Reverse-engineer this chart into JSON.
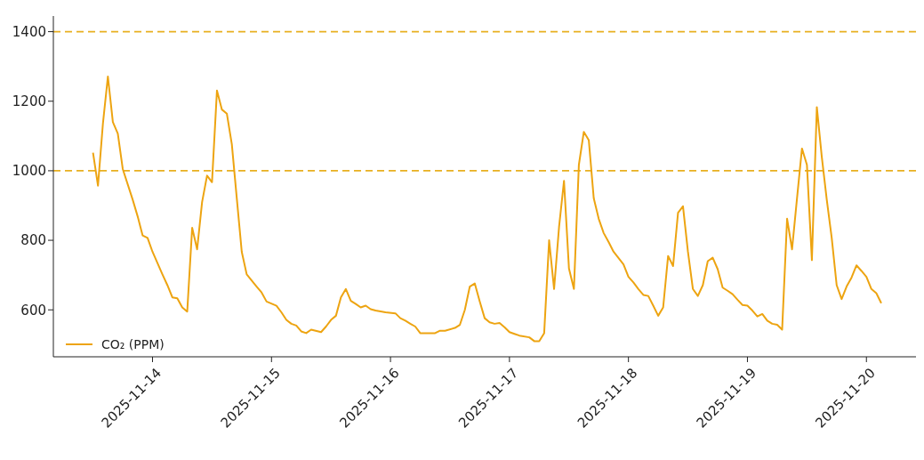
{
  "chart_data": {
    "type": "line",
    "x": [
      "2025-11-13T12:00",
      "2025-11-13T13:00",
      "2025-11-13T14:00",
      "2025-11-13T15:00",
      "2025-11-13T16:00",
      "2025-11-13T17:00",
      "2025-11-13T18:00",
      "2025-11-13T20:00",
      "2025-11-13T21:00",
      "2025-11-13T22:00",
      "2025-11-13T23:00",
      "2025-11-14T00:00",
      "2025-11-14T02:00",
      "2025-11-14T03:00",
      "2025-11-14T04:00",
      "2025-11-14T05:00",
      "2025-11-14T06:00",
      "2025-11-14T07:00",
      "2025-11-14T08:00",
      "2025-11-14T09:00",
      "2025-11-14T10:00",
      "2025-11-14T11:00",
      "2025-11-14T12:00",
      "2025-11-14T13:00",
      "2025-11-14T14:00",
      "2025-11-14T15:00",
      "2025-11-14T16:00",
      "2025-11-14T17:00",
      "2025-11-14T18:00",
      "2025-11-14T19:00",
      "2025-11-14T21:00",
      "2025-11-14T22:00",
      "2025-11-14T23:00",
      "2025-11-15T01:00",
      "2025-11-15T02:00",
      "2025-11-15T03:00",
      "2025-11-15T04:00",
      "2025-11-15T05:00",
      "2025-11-15T06:00",
      "2025-11-15T07:00",
      "2025-11-15T08:00",
      "2025-11-15T10:00",
      "2025-11-15T11:00",
      "2025-11-15T12:00",
      "2025-11-15T13:00",
      "2025-11-15T14:00",
      "2025-11-15T15:00",
      "2025-11-15T16:00",
      "2025-11-15T17:00",
      "2025-11-15T18:00",
      "2025-11-15T19:00",
      "2025-11-15T20:00",
      "2025-11-15T21:00",
      "2025-11-15T23:00",
      "2025-11-16T01:00",
      "2025-11-16T02:00",
      "2025-11-16T03:00",
      "2025-11-16T04:00",
      "2025-11-16T05:00",
      "2025-11-16T06:00",
      "2025-11-16T07:00",
      "2025-11-16T09:00",
      "2025-11-16T10:00",
      "2025-11-16T11:00",
      "2025-11-16T13:00",
      "2025-11-16T14:00",
      "2025-11-16T15:00",
      "2025-11-16T16:00",
      "2025-11-16T17:00",
      "2025-11-16T18:00",
      "2025-11-16T19:00",
      "2025-11-16T20:00",
      "2025-11-16T21:00",
      "2025-11-16T22:00",
      "2025-11-16T23:00",
      "2025-11-17T00:00",
      "2025-11-17T01:00",
      "2025-11-17T02:00",
      "2025-11-17T04:00",
      "2025-11-17T05:00",
      "2025-11-17T06:00",
      "2025-11-17T07:00",
      "2025-11-17T08:00",
      "2025-11-17T09:00",
      "2025-11-17T10:00",
      "2025-11-17T11:00",
      "2025-11-17T12:00",
      "2025-11-17T13:00",
      "2025-11-17T14:00",
      "2025-11-17T15:00",
      "2025-11-17T16:00",
      "2025-11-17T17:00",
      "2025-11-17T18:00",
      "2025-11-17T19:00",
      "2025-11-17T20:00",
      "2025-11-17T21:00",
      "2025-11-17T23:00",
      "2025-11-18T00:00",
      "2025-11-18T01:00",
      "2025-11-18T02:00",
      "2025-11-18T03:00",
      "2025-11-18T04:00",
      "2025-11-18T05:00",
      "2025-11-18T06:00",
      "2025-11-18T07:00",
      "2025-11-18T08:00",
      "2025-11-18T09:00",
      "2025-11-18T10:00",
      "2025-11-18T11:00",
      "2025-11-18T12:00",
      "2025-11-18T13:00",
      "2025-11-18T14:00",
      "2025-11-18T15:00",
      "2025-11-18T16:00",
      "2025-11-18T17:00",
      "2025-11-18T18:00",
      "2025-11-18T19:00",
      "2025-11-18T20:00",
      "2025-11-18T21:00",
      "2025-11-18T22:00",
      "2025-11-18T23:00",
      "2025-11-19T00:00",
      "2025-11-19T01:00",
      "2025-11-19T02:00",
      "2025-11-19T03:00",
      "2025-11-19T04:00",
      "2025-11-19T05:00",
      "2025-11-19T06:00",
      "2025-11-19T07:00",
      "2025-11-19T08:00",
      "2025-11-19T09:00",
      "2025-11-19T10:00",
      "2025-11-19T11:00",
      "2025-11-19T12:00",
      "2025-11-19T13:00",
      "2025-11-19T14:00",
      "2025-11-19T15:00",
      "2025-11-19T16:00",
      "2025-11-19T17:00",
      "2025-11-19T18:00",
      "2025-11-19T19:00",
      "2025-11-19T20:00",
      "2025-11-19T21:00",
      "2025-11-19T22:00",
      "2025-11-19T23:00",
      "2025-11-20T00:00",
      "2025-11-20T01:00",
      "2025-11-20T02:00",
      "2025-11-20T03:00"
    ],
    "series": [
      {
        "name": "CO₂ (PPM)",
        "color": "#eda411",
        "values": [
          1052,
          957,
          1136,
          1271,
          1140,
          1107,
          1005,
          917,
          869,
          814,
          807,
          767,
          702,
          671,
          636,
          633,
          607,
          595,
          836,
          774,
          910,
          986,
          967,
          1231,
          1176,
          1164,
          1076,
          921,
          767,
          702,
          667,
          650,
          624,
          612,
          593,
          571,
          560,
          555,
          538,
          533,
          543,
          536,
          552,
          571,
          583,
          636,
          660,
          626,
          617,
          607,
          612,
          602,
          598,
          593,
          590,
          576,
          569,
          560,
          552,
          533,
          533,
          533,
          540,
          540,
          548,
          557,
          600,
          667,
          676,
          624,
          576,
          564,
          560,
          562,
          550,
          536,
          531,
          526,
          521,
          510,
          510,
          533,
          800,
          660,
          838,
          971,
          719,
          660,
          1017,
          1112,
          1088,
          921,
          862,
          821,
          795,
          767,
          731,
          695,
          679,
          660,
          643,
          640,
          612,
          583,
          607,
          755,
          726,
          879,
          898,
          767,
          660,
          640,
          671,
          740,
          750,
          717,
          664,
          655,
          645,
          629,
          614,
          612,
          598,
          581,
          588,
          569,
          560,
          557,
          543,
          862,
          774,
          921,
          1064,
          1017,
          743,
          1183,
          1040,
          917,
          807,
          671,
          631,
          667,
          693,
          728,
          712,
          695,
          660,
          648,
          619
        ]
      }
    ],
    "xlim": [
      "2025-11-13T04:00",
      "2025-11-20T10:00"
    ],
    "xticks": [
      {
        "value": "2025-11-14",
        "label": "2025-11-14"
      },
      {
        "value": "2025-11-15",
        "label": "2025-11-15"
      },
      {
        "value": "2025-11-16",
        "label": "2025-11-16"
      },
      {
        "value": "2025-11-17",
        "label": "2025-11-17"
      },
      {
        "value": "2025-11-18",
        "label": "2025-11-18"
      },
      {
        "value": "2025-11-19",
        "label": "2025-11-19"
      },
      {
        "value": "2025-11-20",
        "label": "2025-11-20"
      }
    ],
    "ylim": [
      465,
      1445
    ],
    "yticks": [
      600,
      800,
      1000,
      1200,
      1400
    ],
    "ref_lines": [
      {
        "axis": "y",
        "value": 1400,
        "color": "#e8b020",
        "line_style": "dashed"
      },
      {
        "axis": "y",
        "value": 1000,
        "color": "#e8b020",
        "line_style": "dashed"
      }
    ],
    "legend": "bottom left",
    "line_style": "solid"
  }
}
